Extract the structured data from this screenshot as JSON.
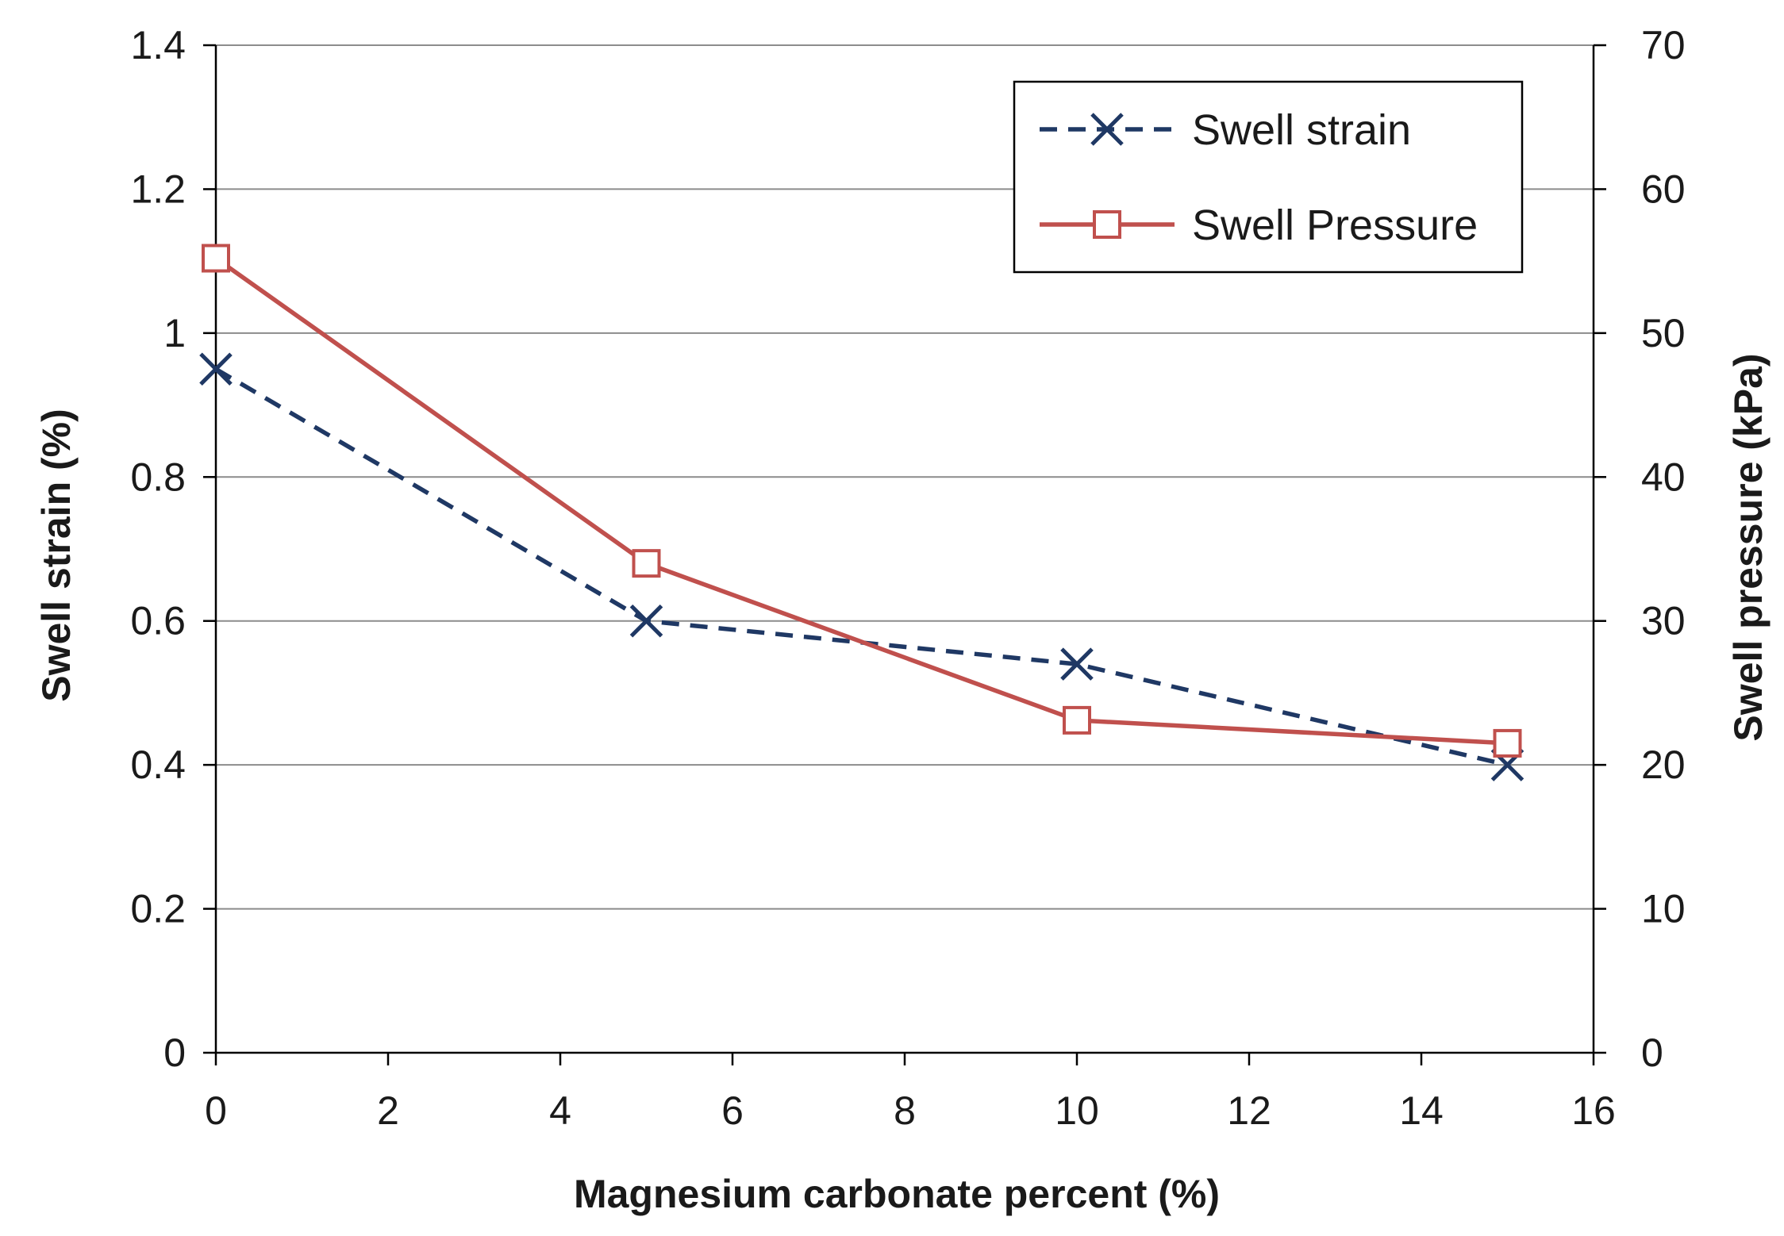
{
  "chart_data": {
    "type": "line",
    "title": "",
    "xlabel": "Magnesium carbonate percent (%)",
    "ylabel_left": "Swell strain (%)",
    "ylabel_right": "Swell pressure (kPa)",
    "xlim": [
      0,
      16
    ],
    "ylim_left": [
      0,
      1.4
    ],
    "ylim_right": [
      0,
      70
    ],
    "x_ticks": [
      "0",
      "2",
      "4",
      "6",
      "8",
      "10",
      "12",
      "14",
      "16"
    ],
    "y_left_ticks": [
      "0",
      "0.2",
      "0.4",
      "0.6",
      "0.8",
      "1",
      "1.2",
      "1.4"
    ],
    "y_right_ticks": [
      "0",
      "10",
      "20",
      "30",
      "40",
      "50",
      "60",
      "70"
    ],
    "grid": true,
    "legend_position": "top-right",
    "series": [
      {
        "name": "Swell strain",
        "axis": "left",
        "color": "#1f3864",
        "line_style": "dashed",
        "marker": "x",
        "x": [
          0,
          5,
          10,
          15
        ],
        "values": [
          0.95,
          0.6,
          0.54,
          0.4
        ]
      },
      {
        "name": "Swell Pressure",
        "axis": "right",
        "color": "#c0504d",
        "line_style": "solid",
        "marker": "square",
        "x": [
          0,
          5,
          10,
          15
        ],
        "values": [
          55.2,
          34,
          23.1,
          21.5
        ]
      }
    ]
  }
}
